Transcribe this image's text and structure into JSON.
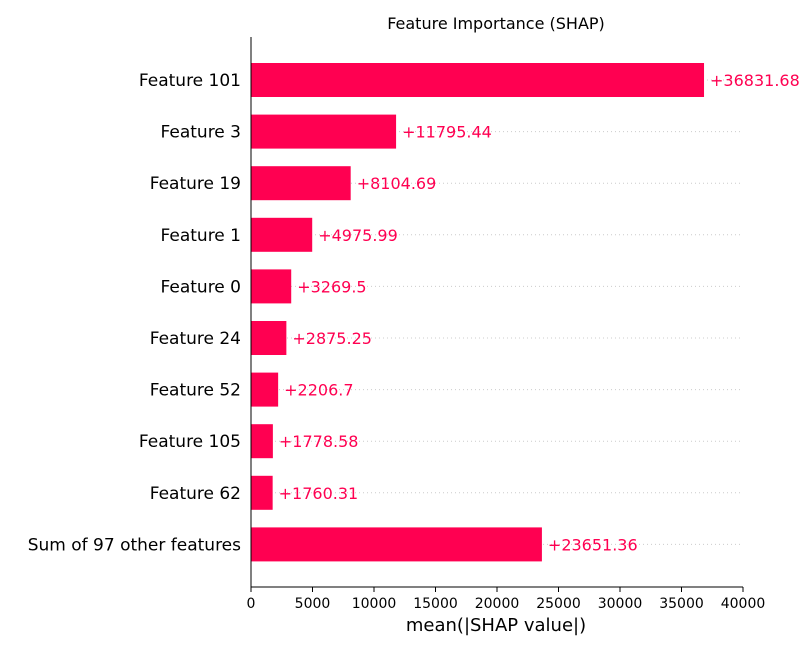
{
  "chart_data": {
    "type": "bar",
    "orientation": "horizontal",
    "title": "Feature Importance (SHAP)",
    "xlabel": "mean(|SHAP value|)",
    "ylabel": "",
    "xlim": [
      0,
      40000
    ],
    "xticks": [
      0,
      5000,
      10000,
      15000,
      20000,
      25000,
      30000,
      35000,
      40000
    ],
    "categories": [
      "Feature 101",
      "Feature 3",
      "Feature 19",
      "Feature 1",
      "Feature 0",
      "Feature 24",
      "Feature 52",
      "Feature 105",
      "Feature 62",
      "Sum of 97 other features"
    ],
    "values": [
      36831.68,
      11795.44,
      8104.69,
      4975.99,
      3269.5,
      2875.25,
      2206.7,
      1778.58,
      1760.31,
      23651.36
    ],
    "value_labels": [
      "+36831.68",
      "+11795.44",
      "+8104.69",
      "+4975.99",
      "+3269.5",
      "+2875.25",
      "+2206.7",
      "+1778.58",
      "+1760.31",
      "+23651.36"
    ],
    "grid": "horizontal-dotted",
    "legend": "none",
    "colors": {
      "bar": "#ff0051",
      "label": "#ff0051",
      "axis": "#000000",
      "grid": "#cccccc"
    }
  }
}
